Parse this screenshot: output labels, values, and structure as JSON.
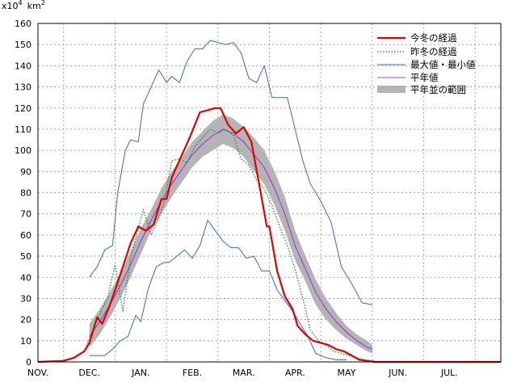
{
  "colors": {
    "current": "#e00000",
    "last_year": "#1a8a3a",
    "extremes": "#3a66cc",
    "average": "#a040dd",
    "normal_range": "#b4b4b4",
    "grid": "#909090"
  },
  "chart_data": {
    "type": "line",
    "title": "",
    "y_unit": {
      "base": "x10",
      "exp": "4",
      "km": "km",
      "km_exp": "2"
    },
    "ylim": [
      0,
      160
    ],
    "y_ticks": [
      "0",
      "10",
      "20",
      "30",
      "40",
      "50",
      "60",
      "70",
      "80",
      "90",
      "100",
      "110",
      "120",
      "130",
      "140",
      "150",
      "160"
    ],
    "xlim": [
      0,
      18
    ],
    "x_ticks": [
      "NOV.",
      "DEC.",
      "JAN.",
      "FEB.",
      "MAR.",
      "APR.",
      "MAY",
      "JUN.",
      "JUL."
    ],
    "grid": true,
    "legend_position": "top-right",
    "legend": [
      "今冬の経過",
      "昨冬の経過",
      "最大値・最小値",
      "平年値",
      "平年並の範囲"
    ],
    "series": {
      "current": {
        "x": [
          0,
          1,
          1.4,
          1.8,
          2.0,
          2.3,
          2.5,
          2.8,
          3.0,
          3.3,
          3.6,
          3.9,
          4.2,
          4.5,
          4.8,
          5.0,
          5.2,
          5.6,
          5.9,
          6.1,
          6.3,
          6.6,
          6.9,
          7.1,
          7.4,
          7.7,
          8.0,
          8.3,
          8.6,
          8.9,
          9.0,
          9.3,
          9.6,
          9.9,
          10.1,
          10.4,
          10.7,
          11.0,
          11.3,
          11.6,
          11.9,
          12.2,
          12.5,
          12.8,
          13.1,
          13.5,
          14.0,
          14.5,
          15.0,
          15.5,
          16.0,
          17.0,
          18.0
        ],
        "values": [
          0,
          0.5,
          2,
          5,
          9,
          21,
          18,
          27,
          34,
          45,
          56,
          64,
          62,
          65,
          77,
          77,
          87,
          98,
          106,
          112,
          118,
          119,
          120,
          120,
          112,
          108,
          111,
          104,
          84,
          64,
          64,
          43,
          31,
          25,
          17,
          13,
          10,
          9,
          8,
          6,
          5,
          3,
          1,
          0.5,
          0,
          0,
          0,
          0,
          0,
          0,
          0,
          0,
          0
        ]
      },
      "last_year": {
        "x": [
          1.8,
          2.3,
          2.7,
          3.0,
          3.3,
          3.6,
          3.9,
          4.1,
          4.4,
          4.7,
          4.9,
          5.2,
          5.5,
          5.8,
          6.1,
          6.4,
          6.7,
          7.0,
          7.3,
          7.6,
          7.9,
          8.2,
          8.5,
          8.8,
          9.1,
          9.4,
          9.7,
          10.0,
          10.3,
          10.6,
          10.9,
          11.2,
          11.5,
          11.8,
          12.1,
          12.4,
          12.7,
          13.0,
          13.3
        ],
        "values": [
          5,
          20,
          30,
          46,
          24,
          49,
          63,
          72,
          60,
          68,
          75,
          95,
          96,
          94,
          102,
          106,
          110,
          108,
          110,
          107,
          96,
          93,
          86,
          82,
          74,
          64,
          55,
          44,
          30,
          15,
          10,
          8,
          5,
          4,
          3,
          2,
          1,
          0.5,
          0
        ]
      },
      "max": {
        "x": [
          2.0,
          2.3,
          2.6,
          2.9,
          3.1,
          3.4,
          3.6,
          3.9,
          4.1,
          4.4,
          4.7,
          5.0,
          5.2,
          5.5,
          5.8,
          6.1,
          6.4,
          6.7,
          7.0,
          7.3,
          7.6,
          7.9,
          8.2,
          8.5,
          8.8,
          9.1,
          9.4,
          9.7,
          10.0,
          10.3,
          10.6,
          11.0,
          11.4,
          11.8,
          12.2,
          12.6,
          13.0
        ],
        "values": [
          40,
          45,
          53,
          55,
          80,
          100,
          105,
          104,
          122,
          130,
          138,
          132,
          135,
          132,
          142,
          148,
          148,
          152,
          151,
          150,
          151,
          146,
          134,
          132,
          140,
          125,
          125,
          125,
          110,
          95,
          84,
          76,
          66,
          45,
          37,
          28,
          27
        ]
      },
      "min": {
        "x": [
          2.0,
          2.3,
          2.6,
          2.9,
          3.2,
          3.5,
          3.8,
          4.0,
          4.3,
          4.6,
          4.9,
          5.1,
          5.4,
          5.7,
          6.0,
          6.3,
          6.6,
          6.9,
          7.2,
          7.5,
          7.8,
          8.1,
          8.4,
          8.7,
          9.0,
          9.3,
          9.6,
          9.9,
          10.2,
          10.5,
          10.8,
          11.2,
          11.6,
          12.0
        ],
        "values": [
          3,
          3,
          3,
          6,
          10,
          12,
          22,
          19,
          35,
          45,
          47,
          47,
          50,
          53,
          49,
          55,
          67,
          62,
          57,
          54,
          54,
          49,
          50,
          43,
          43,
          34,
          29,
          24,
          18,
          12,
          4,
          2,
          1,
          1
        ]
      },
      "average": {
        "x": [
          2.0,
          2.4,
          2.8,
          3.2,
          3.6,
          4.0,
          4.4,
          4.8,
          5.2,
          5.6,
          6.0,
          6.4,
          6.8,
          7.2,
          7.6,
          8.0,
          8.4,
          8.8,
          9.2,
          9.6,
          10.0,
          10.4,
          10.8,
          11.2,
          11.6,
          12.0,
          12.4,
          12.8,
          13.0
        ],
        "values": [
          12,
          19,
          27,
          36,
          46,
          57,
          67,
          76,
          84,
          91,
          98,
          103,
          107,
          110,
          108,
          104,
          98,
          92,
          82,
          70,
          55,
          44,
          33,
          25,
          19,
          14,
          10,
          7,
          6
        ]
      },
      "normal_range": {
        "x": [
          2.0,
          2.4,
          2.8,
          3.2,
          3.6,
          4.0,
          4.4,
          4.8,
          5.2,
          5.6,
          6.0,
          6.4,
          6.8,
          7.2,
          7.6,
          8.0,
          8.4,
          8.8,
          9.2,
          9.6,
          10.0,
          10.4,
          10.8,
          11.2,
          11.6,
          12.0,
          12.4,
          12.8,
          13.0
        ],
        "upper": [
          18,
          25,
          33,
          42,
          52,
          63,
          72,
          82,
          90,
          97,
          104,
          109,
          114,
          117,
          115,
          111,
          106,
          100,
          90,
          78,
          62,
          50,
          39,
          30,
          23,
          17,
          13,
          10,
          8
        ],
        "lower": [
          7,
          13,
          21,
          30,
          40,
          51,
          62,
          70,
          78,
          85,
          92,
          97,
          100,
          103,
          101,
          97,
          90,
          84,
          74,
          62,
          48,
          38,
          27,
          20,
          15,
          11,
          8,
          5,
          4
        ]
      }
    }
  }
}
